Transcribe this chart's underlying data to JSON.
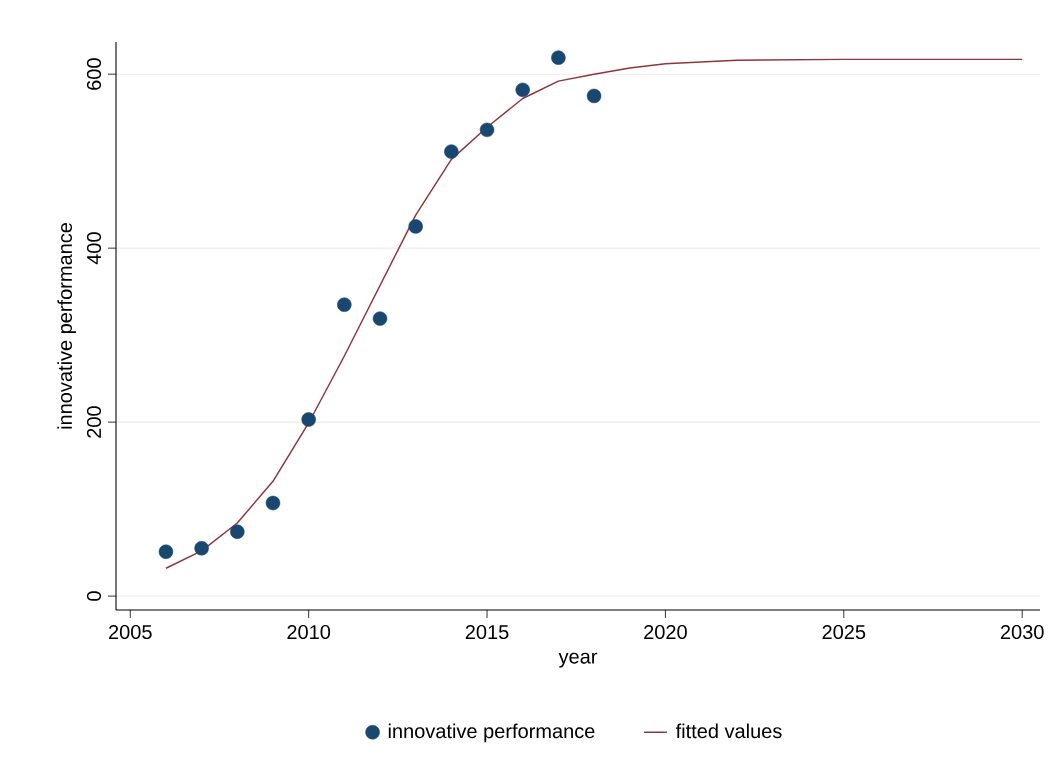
{
  "chart_data": {
    "type": "scatter",
    "xlabel": "year",
    "ylabel": "innovative performance",
    "xlim": [
      2004.6,
      2030.5
    ],
    "xticks": [
      2005,
      2010,
      2015,
      2020,
      2025,
      2030
    ],
    "ylim": [
      -16,
      637
    ],
    "yticks": [
      0,
      200,
      400,
      600
    ],
    "grid": "y",
    "legend": "bottom",
    "series": [
      {
        "name": "innovative performance",
        "marker": "circle",
        "color": "#1a476f",
        "x": [
          2006,
          2007,
          2008,
          2009,
          2010,
          2011,
          2012,
          2013,
          2014,
          2015,
          2016,
          2017,
          2018
        ],
        "values": [
          51,
          55,
          74,
          107,
          203,
          335,
          319,
          425,
          511,
          536,
          582,
          619,
          575
        ]
      },
      {
        "name": "fitted values",
        "type": "line",
        "marker": "none",
        "line_style": "solid",
        "color": "#90353b",
        "x": [
          2006,
          2007,
          2008,
          2009,
          2010,
          2011,
          2012,
          2013,
          2014,
          2015,
          2016,
          2017,
          2018,
          2019,
          2020,
          2022,
          2025,
          2030
        ],
        "values": [
          32,
          52,
          84,
          132,
          199,
          276,
          357,
          438,
          502,
          539,
          572,
          592,
          600,
          607,
          612,
          616,
          617,
          617
        ]
      }
    ]
  }
}
